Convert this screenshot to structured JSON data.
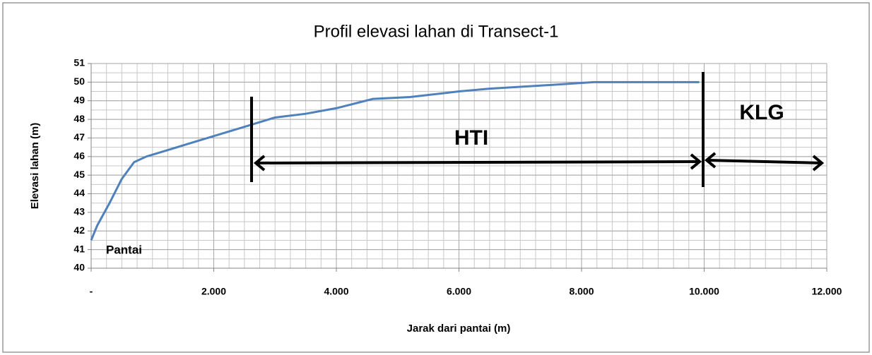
{
  "chart_data": {
    "type": "line",
    "title": "Profil elevasi lahan  di Transect-1",
    "xlabel": "Jarak dari pantai (m)",
    "ylabel": "Elevasi lahan (m)",
    "series": [
      {
        "name": "Transect-1",
        "color": "#4f81bd",
        "x": [
          0,
          100,
          300,
          500,
          700,
          900,
          1200,
          1600,
          2000,
          2500,
          3000,
          3500,
          4000,
          4600,
          5200,
          6000,
          6500,
          7500,
          8200,
          9000,
          9920
        ],
        "values": [
          41.5,
          42.3,
          43.5,
          44.8,
          45.7,
          46.0,
          46.3,
          46.7,
          47.1,
          47.6,
          48.1,
          48.3,
          48.6,
          49.1,
          49.2,
          49.5,
          49.65,
          49.85,
          50.0,
          50.0,
          50.0
        ]
      }
    ],
    "xlim": [
      0,
      12000
    ],
    "xticks": [
      {
        "value": 0,
        "label": "-"
      },
      {
        "value": 2000,
        "label": "2.000"
      },
      {
        "value": 4000,
        "label": "4.000"
      },
      {
        "value": 6000,
        "label": "6.000"
      },
      {
        "value": 8000,
        "label": "8.000"
      },
      {
        "value": 10000,
        "label": "10.000"
      },
      {
        "value": 12000,
        "label": "12.000"
      }
    ],
    "ylim": [
      40,
      51
    ],
    "yticks": [
      40,
      41,
      42,
      43,
      44,
      45,
      46,
      47,
      48,
      49,
      50,
      51
    ],
    "grid": true,
    "x_minor_step": 250,
    "y_minor_step": 0.5,
    "annotations": [
      "Pantai",
      "HTI",
      "KLG"
    ]
  }
}
